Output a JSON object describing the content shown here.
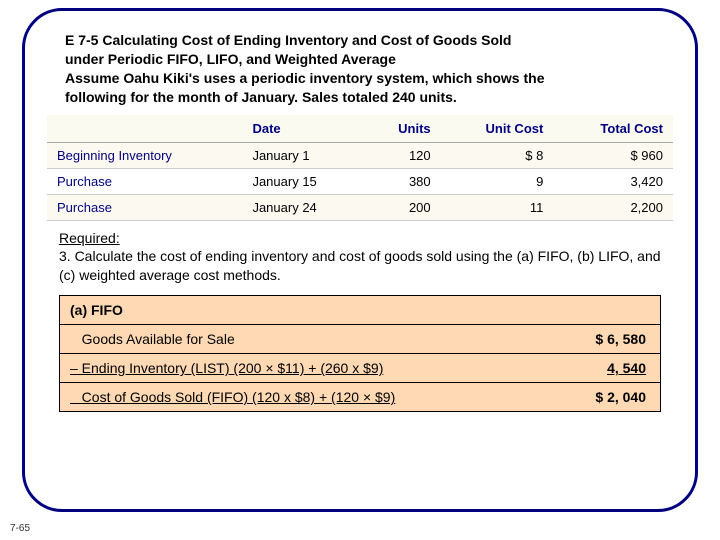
{
  "slideNumber": "7-65",
  "title": {
    "line1": "E 7-5 Calculating Cost of Ending Inventory and Cost of Goods Sold",
    "line2": "under Periodic FIFO, LIFO, and Weighted Average",
    "line3": "Assume Oahu Kiki's uses a periodic inventory system, which shows the",
    "line4": "following for the month of January. Sales totaled 240 units."
  },
  "table": {
    "headers": {
      "c0": "",
      "c1": "Date",
      "c2": "Units",
      "c3": "Unit Cost",
      "c4": "Total Cost"
    },
    "rows": [
      {
        "c0": "Beginning Inventory",
        "c1": "January 1",
        "c2": "120",
        "c3": "$  8",
        "c4": "$   960"
      },
      {
        "c0": "Purchase",
        "c1": "January 15",
        "c2": "380",
        "c3": "9",
        "c4": "3,420"
      },
      {
        "c0": "Purchase",
        "c1": "January 24",
        "c2": "200",
        "c3": "11",
        "c4": "2,200"
      }
    ]
  },
  "required": {
    "label": "Required:",
    "text": "3. Calculate the cost of ending inventory and cost of goods sold using the (a) FIFO, (b) LIFO, and (c) weighted average cost methods."
  },
  "fifo": {
    "header": "(a) FIFO",
    "rows": [
      {
        "label": "   Goods Available for Sale",
        "amount": "$ 6, 580",
        "underline": false
      },
      {
        "label": "– Ending Inventory (LIST) (200 × $11) + (260 x $9)",
        "amount": "4, 540",
        "underline": true
      },
      {
        "label": "   Cost of Goods Sold (FIFO) (120 x $8) + (120 × $9)",
        "amount": "$ 2, 040",
        "underline": true
      }
    ]
  },
  "colors": {
    "border": "#000080",
    "headerText": "#000080",
    "fifoBg": "#ffd9b3",
    "tableAltBg": "#fcfaf0"
  }
}
